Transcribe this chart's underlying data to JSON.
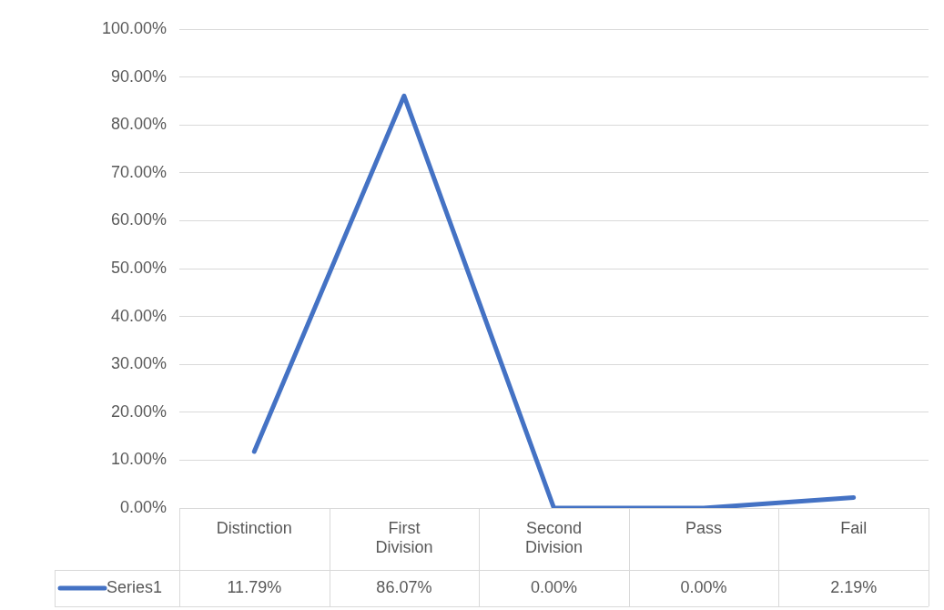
{
  "chart_data": {
    "type": "line",
    "categories": [
      "Distinction",
      "First Division",
      "Second Division",
      "Pass",
      "Fail"
    ],
    "series": [
      {
        "name": "Series1",
        "color": "#4472c4",
        "values": [
          11.79,
          86.07,
          0,
          0,
          2.19
        ],
        "value_labels": [
          "11.79%",
          "86.07%",
          "0.00%",
          "0.00%",
          "2.19%"
        ]
      }
    ],
    "ylim": [
      0,
      100
    ],
    "yticks": [
      {
        "value": 0,
        "label": "0.00%"
      },
      {
        "value": 10,
        "label": "10.00%"
      },
      {
        "value": 20,
        "label": "20.00%"
      },
      {
        "value": 30,
        "label": "30.00%"
      },
      {
        "value": 40,
        "label": "40.00%"
      },
      {
        "value": 50,
        "label": "50.00%"
      },
      {
        "value": 60,
        "label": "60.00%"
      },
      {
        "value": 70,
        "label": "70.00%"
      },
      {
        "value": 80,
        "label": "80.00%"
      },
      {
        "value": 90,
        "label": "90.00%"
      },
      {
        "value": 100,
        "label": "100.00%"
      }
    ],
    "grid": "y",
    "legend": "bottom",
    "marker": "none",
    "line_style": "solid"
  }
}
